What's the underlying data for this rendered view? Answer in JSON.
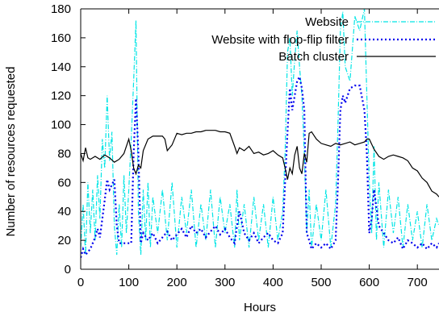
{
  "chart_data": {
    "type": "line",
    "title": "",
    "xlabel": "Hours",
    "ylabel": "Number of resources requested",
    "xlim": [
      0,
      745
    ],
    "ylim": [
      0,
      180
    ],
    "xticks": [
      0,
      100,
      200,
      300,
      400,
      500,
      600,
      700
    ],
    "yticks": [
      0,
      20,
      40,
      60,
      80,
      100,
      120,
      140,
      160,
      180
    ],
    "grid": false,
    "legend_position": "top-right",
    "series": [
      {
        "name": "Website",
        "color": "#00e5e5",
        "style": "dash-dot",
        "x": [
          0,
          5,
          10,
          15,
          20,
          25,
          30,
          35,
          40,
          45,
          50,
          55,
          60,
          65,
          70,
          75,
          80,
          85,
          90,
          95,
          100,
          105,
          110,
          115,
          120,
          125,
          130,
          135,
          140,
          145,
          150,
          160,
          170,
          180,
          190,
          200,
          210,
          220,
          230,
          240,
          250,
          260,
          270,
          280,
          290,
          300,
          310,
          320,
          325,
          330,
          340,
          350,
          360,
          370,
          380,
          390,
          400,
          410,
          420,
          425,
          430,
          435,
          440,
          445,
          450,
          455,
          460,
          465,
          470,
          475,
          480,
          490,
          500,
          510,
          520,
          530,
          535,
          540,
          545,
          550,
          560,
          570,
          580,
          590,
          595,
          600,
          605,
          610,
          615,
          620,
          630,
          640,
          650,
          660,
          670,
          680,
          690,
          700,
          710,
          720,
          730,
          740,
          745
        ],
        "y": [
          15,
          45,
          10,
          60,
          25,
          55,
          20,
          65,
          35,
          90,
          70,
          120,
          75,
          95,
          30,
          10,
          45,
          15,
          65,
          25,
          55,
          90,
          130,
          172,
          40,
          10,
          55,
          20,
          60,
          15,
          50,
          25,
          55,
          20,
          60,
          15,
          50,
          25,
          55,
          15,
          45,
          20,
          55,
          15,
          50,
          25,
          45,
          15,
          55,
          20,
          45,
          15,
          50,
          20,
          45,
          15,
          50,
          20,
          40,
          80,
          150,
          160,
          120,
          145,
          165,
          140,
          120,
          80,
          25,
          55,
          15,
          45,
          20,
          55,
          15,
          45,
          100,
          165,
          178,
          140,
          130,
          175,
          165,
          180,
          120,
          60,
          25,
          85,
          20,
          60,
          15,
          55,
          25,
          50,
          15,
          45,
          20,
          40,
          15,
          45,
          20,
          35,
          30
        ]
      },
      {
        "name": "Website with flop-flip filter",
        "color": "#0000ee",
        "style": "dotted",
        "x": [
          0,
          5,
          10,
          20,
          25,
          30,
          35,
          40,
          45,
          50,
          55,
          60,
          70,
          75,
          80,
          90,
          100,
          105,
          110,
          115,
          120,
          125,
          130,
          140,
          150,
          160,
          170,
          180,
          190,
          200,
          210,
          220,
          230,
          240,
          250,
          260,
          270,
          280,
          290,
          300,
          310,
          320,
          325,
          330,
          340,
          350,
          360,
          370,
          380,
          390,
          400,
          410,
          420,
          425,
          430,
          435,
          440,
          445,
          450,
          455,
          460,
          465,
          470,
          475,
          480,
          490,
          500,
          510,
          520,
          530,
          535,
          540,
          545,
          550,
          560,
          570,
          580,
          590,
          595,
          600,
          605,
          610,
          620,
          630,
          640,
          650,
          660,
          670,
          680,
          690,
          700,
          710,
          720,
          730,
          740,
          745
        ],
        "y": [
          8,
          14,
          10,
          14,
          18,
          22,
          28,
          22,
          35,
          48,
          62,
          55,
          62,
          30,
          18,
          18,
          18,
          18,
          80,
          118,
          80,
          18,
          25,
          20,
          25,
          18,
          22,
          26,
          20,
          24,
          28,
          22,
          30,
          25,
          28,
          22,
          26,
          30,
          24,
          28,
          22,
          18,
          30,
          40,
          25,
          20,
          25,
          18,
          22,
          25,
          20,
          18,
          25,
          60,
          95,
          125,
          110,
          120,
          130,
          133,
          125,
          110,
          25,
          20,
          14,
          18,
          15,
          18,
          14,
          20,
          60,
          110,
          120,
          115,
          125,
          127,
          127,
          110,
          80,
          25,
          35,
          55,
          30,
          25,
          20,
          18,
          22,
          14,
          20,
          18,
          15,
          18,
          14,
          18,
          15,
          18
        ]
      },
      {
        "name": "Batch cluster",
        "color": "#000000",
        "style": "solid",
        "x": [
          0,
          5,
          10,
          15,
          20,
          30,
          40,
          50,
          60,
          70,
          80,
          90,
          100,
          105,
          110,
          115,
          120,
          125,
          130,
          140,
          150,
          160,
          170,
          175,
          180,
          190,
          200,
          210,
          220,
          230,
          240,
          250,
          260,
          270,
          280,
          290,
          300,
          310,
          320,
          325,
          330,
          340,
          350,
          360,
          370,
          380,
          390,
          400,
          410,
          420,
          425,
          430,
          435,
          440,
          445,
          450,
          455,
          460,
          465,
          470,
          475,
          480,
          490,
          500,
          510,
          520,
          530,
          540,
          550,
          560,
          570,
          580,
          590,
          595,
          600,
          610,
          620,
          630,
          640,
          650,
          660,
          670,
          680,
          690,
          700,
          710,
          720,
          730,
          740,
          745
        ],
        "y": [
          80,
          75,
          84,
          77,
          76,
          78,
          76,
          79,
          77,
          74,
          76,
          80,
          90,
          82,
          70,
          66,
          72,
          70,
          82,
          90,
          92,
          92,
          92,
          90,
          82,
          86,
          94,
          93,
          94,
          94,
          95,
          95,
          96,
          96,
          96,
          95,
          95,
          94,
          85,
          80,
          84,
          82,
          85,
          80,
          81,
          79,
          80,
          82,
          79,
          77,
          70,
          62,
          70,
          66,
          79,
          85,
          70,
          66,
          80,
          74,
          94,
          95,
          90,
          87,
          86,
          85,
          87,
          86,
          87,
          88,
          86,
          87,
          88,
          90,
          90,
          83,
          78,
          76,
          78,
          79,
          78,
          77,
          75,
          70,
          68,
          63,
          60,
          54,
          52,
          50
        ]
      }
    ]
  }
}
